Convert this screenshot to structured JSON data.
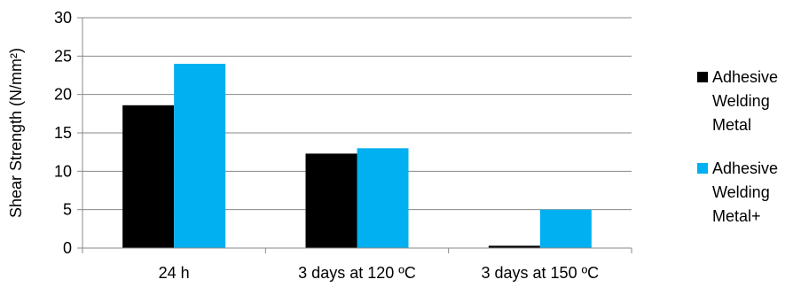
{
  "chart_data": {
    "type": "bar",
    "title": "",
    "xlabel": "",
    "ylabel": "Shear Strength (N/mm²)",
    "categories": [
      "24 h",
      "3 days at 120 ºC",
      "3 days at 150 ºC"
    ],
    "series": [
      {
        "name": "Adhesive Welding Metal",
        "color": "#000000",
        "values": [
          18.6,
          12.3,
          0.3
        ]
      },
      {
        "name": "Adhesive Welding Metal+",
        "color": "#00B0F0",
        "values": [
          24.0,
          13.0,
          5.0
        ]
      }
    ],
    "ylim": [
      0,
      30
    ],
    "yticks": [
      0,
      5,
      10,
      15,
      20,
      25,
      30
    ],
    "grid": true,
    "legend_position": "right",
    "legend_lines": [
      [
        "Adhesive",
        "Welding",
        "Metal"
      ],
      [
        "Adhesive",
        "Welding",
        "Metal+"
      ]
    ]
  }
}
